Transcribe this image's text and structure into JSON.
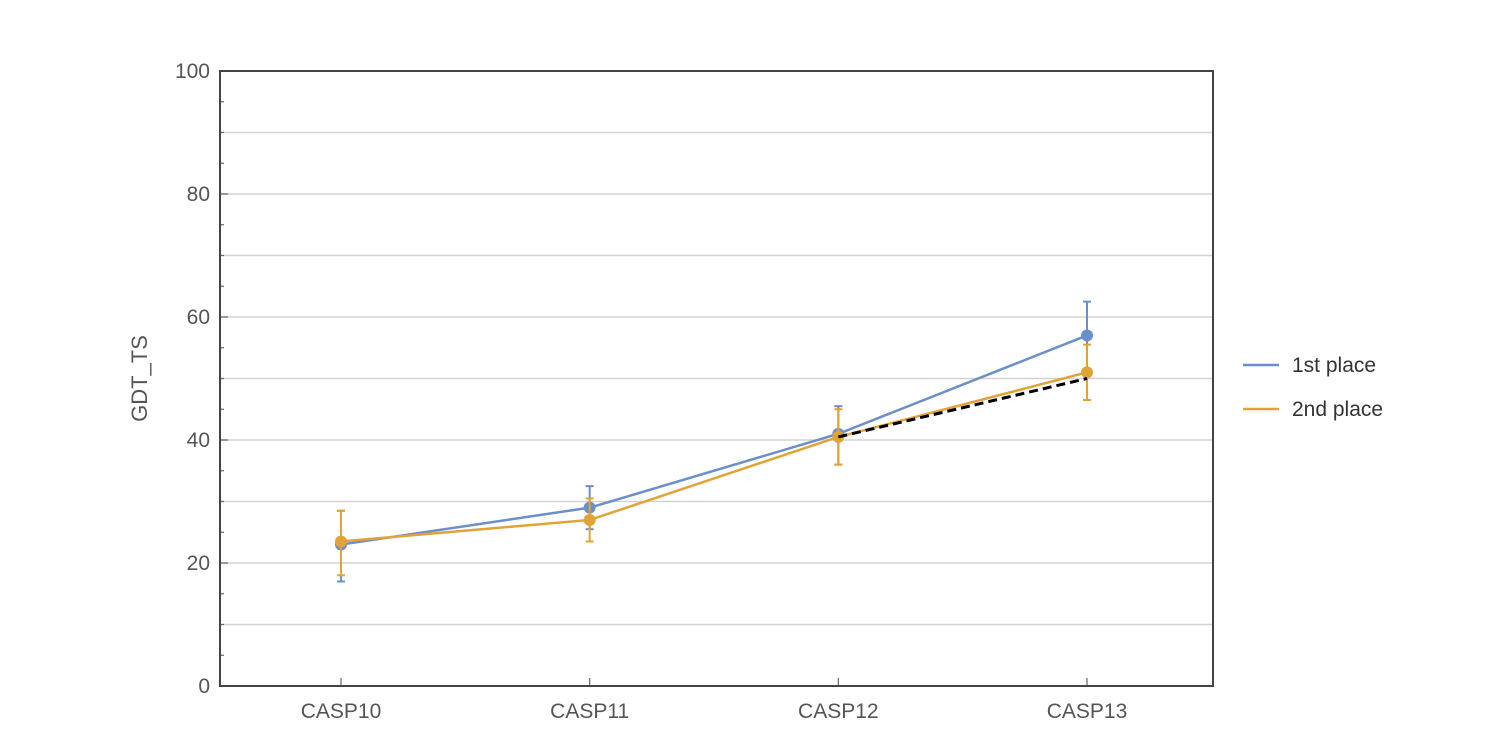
{
  "chart_data": {
    "type": "line",
    "title": "",
    "xlabel": "",
    "ylabel": "GDT_TS",
    "categories": [
      "CASP10",
      "CASP11",
      "CASP12",
      "CASP13"
    ],
    "ylim": [
      0,
      100
    ],
    "yticks": [
      0,
      20,
      40,
      60,
      80,
      100
    ],
    "grid": true,
    "legend_position": "right",
    "series": [
      {
        "name": "1st place",
        "color": "#6b8fc9",
        "values": [
          23,
          29,
          41,
          57
        ],
        "err_low": [
          17,
          25.5,
          36,
          51.5
        ],
        "err_high": [
          28.5,
          32.5,
          45.5,
          62.5
        ]
      },
      {
        "name": "2nd place",
        "color": "#e0a436",
        "values": [
          23.5,
          27,
          40.5,
          51
        ],
        "err_low": [
          18,
          23.5,
          36,
          46.5
        ],
        "err_high": [
          28.5,
          30.5,
          45,
          55.5
        ]
      }
    ],
    "trend_line": {
      "style": "dashed",
      "color": "#000000",
      "from": {
        "x": "CASP12",
        "y": 40.5
      },
      "to": {
        "x": "CASP13",
        "y": 50
      }
    }
  }
}
